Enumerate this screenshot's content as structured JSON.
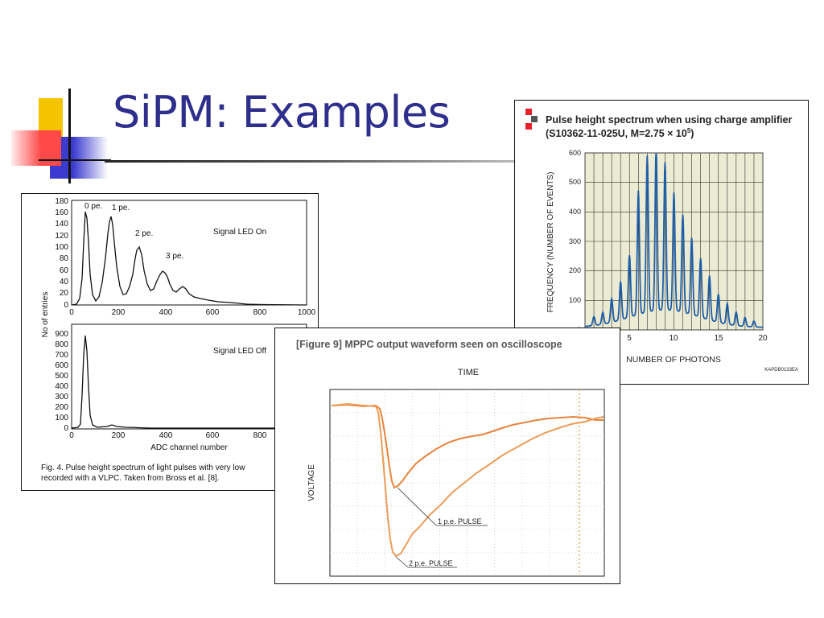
{
  "slide": {
    "title": "SiPM: Examples",
    "colors": {
      "title": "#2e2e8c",
      "deco_yellow": "#f5c400",
      "deco_blue": "#3b3bd0",
      "deco_red": "#ff4040"
    }
  },
  "figure_left": {
    "top_plot": {
      "y_ticks": [
        "180",
        "160",
        "140",
        "120",
        "100",
        "80",
        "60",
        "40",
        "20",
        "0"
      ],
      "x_ticks": [
        "0",
        "200",
        "400",
        "600",
        "800",
        "1000"
      ],
      "peak_labels": [
        "0 pe.",
        "1 pe.",
        "2 pe.",
        "3 pe."
      ],
      "annotation": "Signal LED On"
    },
    "bottom_plot": {
      "y_ticks": [
        "900",
        "800",
        "700",
        "600",
        "500",
        "400",
        "300",
        "200",
        "100",
        "0"
      ],
      "x_ticks": [
        "0",
        "200",
        "400",
        "600",
        "800"
      ],
      "annotation": "Signal LED Off",
      "xlabel": "ADC channel number"
    },
    "ylabel": "No of entries",
    "caption_line1": "Fig. 4. Pulse height spectrum of light pulses with very low",
    "caption_line2": "recorded with a VLPC. Taken from Bross et al. [8]."
  },
  "figure_right": {
    "title_line1": "Pulse height spectrum when using charge amplifier",
    "title_line2": "(S10362-11-025U, M=2.75 × 10",
    "title_sup": "5",
    "title_end": ")",
    "ylabel": "FREQUENCY (NUMBER OF EVENTS)",
    "xlabel": "NUMBER OF PHOTONS",
    "code": "KAPDB0133EA",
    "y_ticks": [
      "600",
      "500",
      "400",
      "300",
      "200",
      "100",
      "0"
    ],
    "x_ticks": [
      "5",
      "10",
      "15",
      "20"
    ]
  },
  "figure_front": {
    "title": "[Figure 9] MPPC output waveform seen on oscilloscope",
    "time_label": "TIME",
    "voltage_label": "VOLTAGE",
    "pulse1": "1 p.e. PULSE",
    "pulse2": "2 p.e. PULSE"
  }
}
